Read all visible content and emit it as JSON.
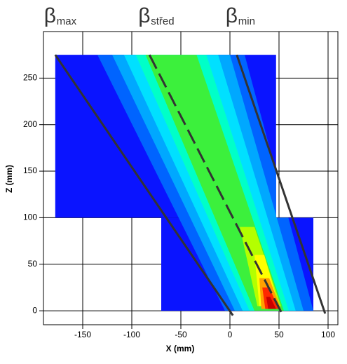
{
  "chart_data": {
    "type": "contour",
    "x_label": "X (mm)",
    "y_label": "Z (mm)",
    "xlim": [
      -190,
      110
    ],
    "ylim": [
      -15,
      300
    ],
    "xticks": [
      -150,
      -100,
      -50,
      0,
      50,
      100
    ],
    "yticks": [
      0,
      50,
      100,
      150,
      200,
      250
    ],
    "grid": true,
    "regions": [
      {
        "color": "#0a14ff",
        "x": [
          -178,
          47,
          47,
          -178
        ],
        "y": [
          275,
          275,
          100,
          100
        ]
      },
      {
        "color": "#0a14ff",
        "x": [
          -70,
          85,
          85,
          -70
        ],
        "y": [
          100,
          100,
          0,
          0
        ]
      }
    ],
    "bands": [
      {
        "color": "#0064ff",
        "x": [
          -135,
          15,
          85,
          -5
        ],
        "y": [
          275,
          275,
          0,
          0
        ]
      },
      {
        "color": "#00a8ff",
        "x": [
          -120,
          0,
          75,
          5
        ],
        "y": [
          275,
          275,
          0,
          0
        ]
      },
      {
        "color": "#00e0ff",
        "x": [
          -108,
          -12,
          67,
          13
        ],
        "y": [
          275,
          275,
          0,
          0
        ]
      },
      {
        "color": "#00ffc8",
        "x": [
          -96,
          -24,
          60,
          20
        ],
        "y": [
          275,
          275,
          0,
          0
        ]
      },
      {
        "color": "#3cf03c",
        "x": [
          -86,
          -34,
          55,
          25
        ],
        "y": [
          275,
          275,
          0,
          0
        ]
      },
      {
        "color": "#b4ff00",
        "x": [
          10,
          25,
          52,
          28
        ],
        "y": [
          90,
          90,
          5,
          5
        ]
      },
      {
        "color": "#ffff00",
        "x": [
          25,
          35,
          50,
          30
        ],
        "y": [
          60,
          60,
          5,
          5
        ]
      },
      {
        "color": "#ffa000",
        "x": [
          30,
          40,
          52,
          32
        ],
        "y": [
          35,
          35,
          2,
          2
        ]
      },
      {
        "color": "#ff2800",
        "x": [
          33,
          40,
          50,
          36
        ],
        "y": [
          25,
          25,
          2,
          2
        ]
      },
      {
        "color": "#c80000",
        "x": [
          37,
          41,
          47,
          39
        ],
        "y": [
          15,
          15,
          2,
          2
        ]
      }
    ],
    "series": [
      {
        "name": "β",
        "subscript": "max",
        "color": "#333333",
        "dashed": false,
        "x": [
          -178,
          3
        ],
        "values": [
          275,
          -5
        ]
      },
      {
        "name": "β",
        "subscript": "střed",
        "color": "#333333",
        "dashed": true,
        "x": [
          -82,
          53
        ],
        "values": [
          275,
          -3
        ]
      },
      {
        "name": "β",
        "subscript": "min",
        "color": "#333333",
        "dashed": false,
        "x": [
          7,
          97
        ],
        "values": [
          275,
          -3
        ]
      }
    ]
  }
}
